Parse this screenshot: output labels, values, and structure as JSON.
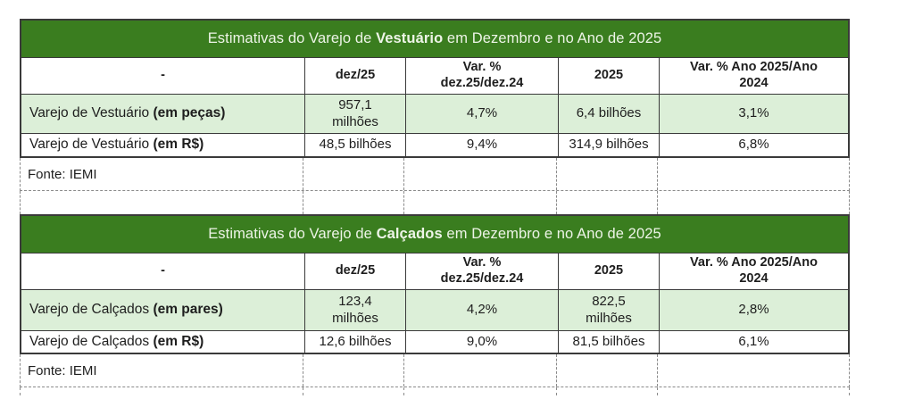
{
  "colors": {
    "title_bg": "#3A7D1F",
    "title_text": "#EDF4E7",
    "highlight_row_bg": "#DCEFD8",
    "border": "#3A3A3A",
    "dashed_line": "#8A8A8A",
    "text": "#1E1E1E"
  },
  "tables": [
    {
      "title_prefix": "Estimativas do Varejo de ",
      "title_bold": "Vestuário",
      "title_suffix": " em Dezembro e no Ano de 2025",
      "headers": [
        "-",
        "dez/25",
        "Var. %\ndez.25/dez.24",
        "2025",
        "Var. % Ano 2025/Ano\n2024"
      ],
      "rows": [
        {
          "label": "Varejo de Vestuário ",
          "label_bold": "(em peças)",
          "dez25": "957,1\nmilhões",
          "var_dez": "4,7%",
          "ano2025": "6,4 bilhões",
          "var_ano": "3,1%"
        },
        {
          "label": "Varejo de Vestuário ",
          "label_bold": "(em R$)",
          "dez25": "48,5 bilhões",
          "var_dez": "9,4%",
          "ano2025": "314,9 bilhões",
          "var_ano": "6,8%"
        }
      ],
      "source": "Fonte: IEMI"
    },
    {
      "title_prefix": "Estimativas do Varejo de ",
      "title_bold": "Calçados",
      "title_suffix": " em Dezembro e no Ano de 2025",
      "headers": [
        "-",
        "dez/25",
        "Var. %\ndez.25/dez.24",
        "2025",
        "Var. % Ano 2025/Ano\n2024"
      ],
      "rows": [
        {
          "label": "Varejo de Calçados ",
          "label_bold": "(em pares)",
          "dez25": "123,4\nmilhões",
          "var_dez": "4,2%",
          "ano2025": "822,5\nmilhões",
          "var_ano": "2,8%"
        },
        {
          "label": "Varejo de Calçados ",
          "label_bold": "(em R$)",
          "dez25": "12,6 bilhões",
          "var_dez": "9,0%",
          "ano2025": "81,5 bilhões",
          "var_ano": "6,1%"
        }
      ],
      "source": "Fonte: IEMI"
    }
  ]
}
